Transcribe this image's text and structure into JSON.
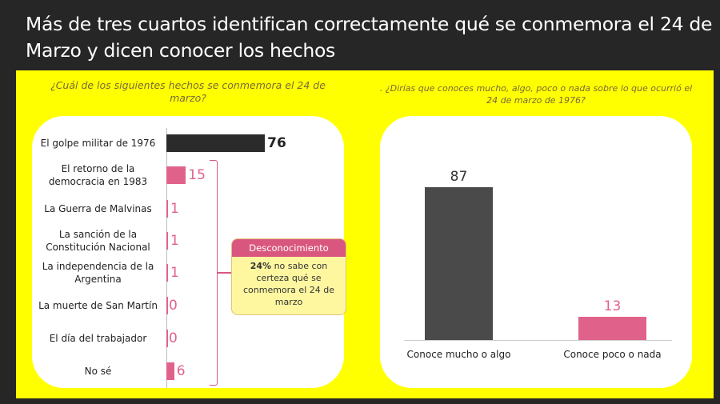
{
  "title": "Más de tres cuartos identifican correctamente qué se conmemora el 24 de Marzo y dicen conocer los hechos",
  "colors": {
    "background": "#262626",
    "panel": "#ffff00",
    "highlight_bar": "#2b2b2b",
    "pink": "#e0628a",
    "gray_bar": "#4a4a4a"
  },
  "chart_data": [
    {
      "type": "bar",
      "orientation": "horizontal",
      "title": "¿Cuál de los siguientes hechos se conmemora el 24 de marzo?",
      "categories": [
        "El golpe militar de 1976",
        "El retorno de la democracia en 1983",
        "La Guerra de Malvinas",
        "La sanción de la Constitución Nacional",
        "La independencia de la Argentina",
        "La muerte de San Martín",
        "El día del trabajador",
        "No sé"
      ],
      "values": [
        76,
        15,
        1,
        1,
        1,
        0,
        0,
        6
      ],
      "annotation": {
        "header": "Desconocimiento",
        "bold": "24%",
        "text": " no sabe con certeza qué se conmemora el 24 de marzo"
      }
    },
    {
      "type": "bar",
      "orientation": "vertical",
      "title": ". ¿Dirías que conoces mucho, algo, poco o nada sobre lo que ocurrió el 24 de marzo de 1976?",
      "categories": [
        "Conoce mucho o algo",
        "Conoce poco o nada"
      ],
      "values": [
        87,
        13
      ]
    }
  ]
}
